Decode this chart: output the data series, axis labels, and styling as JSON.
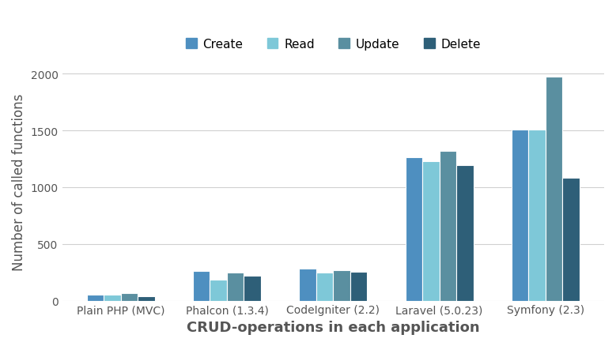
{
  "categories": [
    "Plain PHP (MVC)",
    "Phalcon (1.3.4)",
    "CodeIgniter (2.2)",
    "Laravel (5.0.23)",
    "Symfony (2.3)"
  ],
  "operations": [
    "Create",
    "Read",
    "Update",
    "Delete"
  ],
  "colors": [
    "#4e8fc0",
    "#7ec8d8",
    "#5a8fa0",
    "#2e5f78"
  ],
  "values": {
    "Create": [
      55,
      260,
      285,
      1265,
      1510
    ],
    "Read": [
      55,
      185,
      250,
      1230,
      1510
    ],
    "Update": [
      65,
      250,
      270,
      1320,
      1975
    ],
    "Delete": [
      40,
      220,
      255,
      1195,
      1085
    ]
  },
  "ylabel": "Number of called functions",
  "xlabel": "CRUD-operations in each application",
  "ylim": [
    0,
    2100
  ],
  "yticks": [
    0,
    500,
    1000,
    1500,
    2000
  ],
  "background_color": "#ffffff",
  "bar_edge_color": "white",
  "grid_color": "#d0d0d0",
  "legend_position": "upper center",
  "axis_label_fontsize": 12,
  "tick_fontsize": 10,
  "legend_fontsize": 11,
  "bar_width": 0.16
}
